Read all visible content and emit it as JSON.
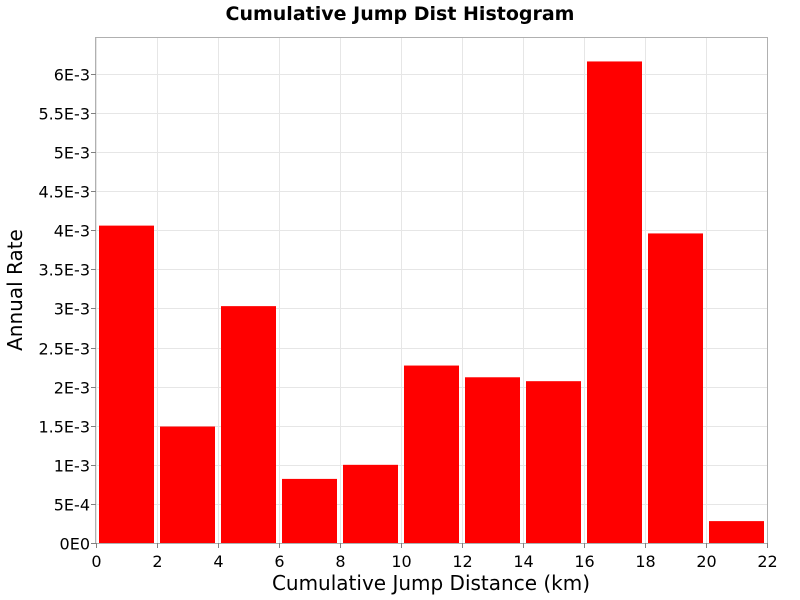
{
  "chart_data": {
    "type": "bar",
    "title": "Cumulative Jump Dist Histogram",
    "xlabel": "Cumulative Jump Distance (km)",
    "ylabel": "Annual Rate",
    "xlim": [
      0,
      22
    ],
    "ylim": [
      0,
      0.00646
    ],
    "x_ticks": [
      0,
      2,
      4,
      6,
      8,
      10,
      12,
      14,
      16,
      18,
      20,
      22
    ],
    "x_tick_labels": [
      "0",
      "2",
      "4",
      "6",
      "8",
      "10",
      "12",
      "14",
      "16",
      "18",
      "20",
      "22"
    ],
    "y_ticks": [
      0,
      0.0005,
      0.001,
      0.0015,
      0.002,
      0.0025,
      0.003,
      0.0035,
      0.004,
      0.0045,
      0.005,
      0.0055,
      0.006
    ],
    "y_tick_labels": [
      "0E0",
      "5E-4",
      "1E-3",
      "1.5E-3",
      "2E-3",
      "2.5E-3",
      "3E-3",
      "3.5E-3",
      "4E-3",
      "4.5E-3",
      "5E-3",
      "5.5E-3",
      "6E-3"
    ],
    "bin_width": 2,
    "bins_center": [
      1,
      3,
      5,
      7,
      9,
      11,
      13,
      15,
      17,
      19,
      21
    ],
    "values": [
      0.00406,
      0.00149,
      0.00303,
      0.00082,
      0.001,
      0.00227,
      0.00212,
      0.00207,
      0.00616,
      0.00396,
      0.00028
    ],
    "grid": true,
    "legend": "none",
    "colors": {
      "bar": "#ff0000",
      "grid": "#e6e6e6",
      "frame": "#b0b0b0",
      "background": "#ffffff"
    }
  }
}
